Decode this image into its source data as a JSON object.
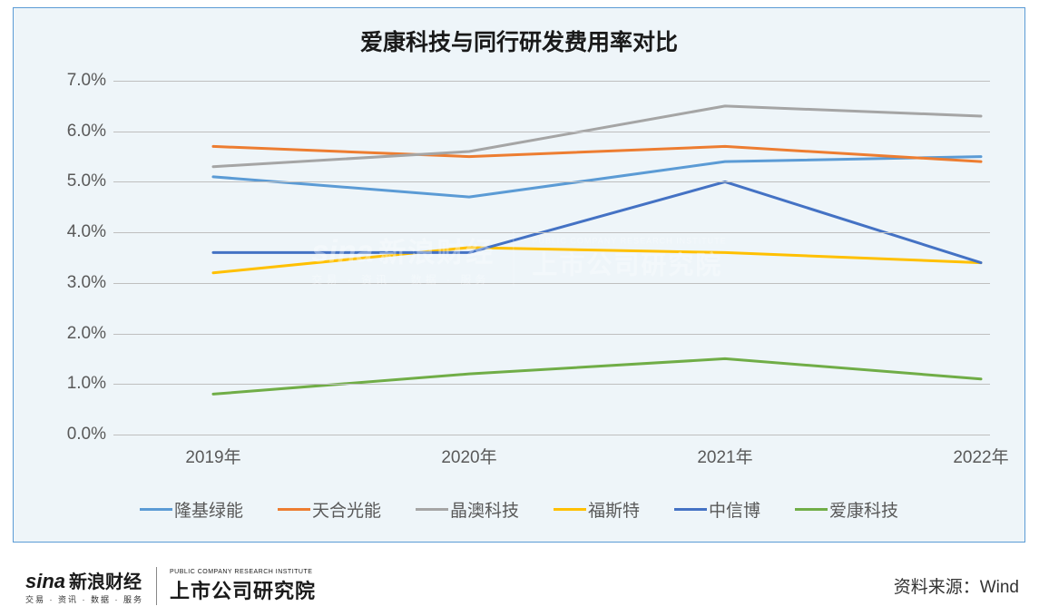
{
  "chart": {
    "type": "line",
    "title": "爱康科技与同行研发费用率对比",
    "title_fontsize": 25,
    "background_color": "#eef5f9",
    "border_color": "#5b9bd5",
    "grid_color": "#bfbfbf",
    "axis_label_color": "#595959",
    "axis_fontsize": 19,
    "line_width": 3,
    "ylim": [
      0.0,
      7.0
    ],
    "ytick_step": 1.0,
    "y_suffix": "%",
    "y_decimals": 1,
    "categories": [
      "2019年",
      "2020年",
      "2021年",
      "2022年"
    ],
    "series": [
      {
        "name": "隆基绿能",
        "color": "#5b9bd5",
        "values": [
          5.1,
          4.7,
          5.4,
          5.5
        ]
      },
      {
        "name": "天合光能",
        "color": "#ed7d31",
        "values": [
          5.7,
          5.5,
          5.7,
          5.4
        ]
      },
      {
        "name": "晶澳科技",
        "color": "#a5a5a5",
        "values": [
          5.3,
          5.6,
          6.5,
          6.3
        ]
      },
      {
        "name": "福斯特",
        "color": "#ffc000",
        "values": [
          3.2,
          3.7,
          3.6,
          3.4
        ]
      },
      {
        "name": "中信博",
        "color": "#4472c4",
        "values": [
          3.6,
          3.6,
          5.0,
          3.4
        ]
      },
      {
        "name": "爱康科技",
        "color": "#70ad47",
        "values": [
          0.8,
          1.2,
          1.5,
          1.1
        ]
      }
    ]
  },
  "watermark": {
    "sina_en": "sina",
    "sina_cn": "新浪财经",
    "sub": "交易 · 资讯 · 数据 · 服务",
    "institute": "上市公司研究院",
    "institute_en": "PUBLIC COMPANY RESEARCH INSTITUTE"
  },
  "footer": {
    "source_label": "资料来源：Wind"
  }
}
